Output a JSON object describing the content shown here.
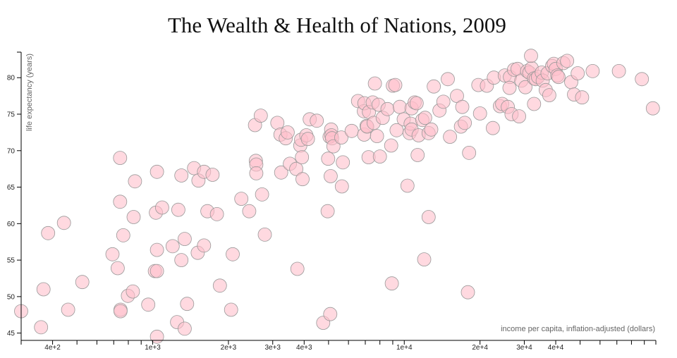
{
  "chart_data": {
    "type": "scatter",
    "title": "The Wealth & Health of Nations, 2009",
    "xlabel": "income per capita, inflation-adjusted (dollars)",
    "ylabel": "life expectancy (years)",
    "x_scale": "log",
    "xlim": [
      300,
      100000
    ],
    "ylim": [
      44,
      83.5
    ],
    "x_ticks": [
      {
        "value": 400,
        "label": "4e+2"
      },
      {
        "value": 1000,
        "label": "1e+3"
      },
      {
        "value": 2000,
        "label": "2e+3"
      },
      {
        "value": 3000,
        "label": "3e+3"
      },
      {
        "value": 4000,
        "label": "4e+3"
      },
      {
        "value": 10000,
        "label": "1e+4"
      },
      {
        "value": 20000,
        "label": "2e+4"
      },
      {
        "value": 30000,
        "label": "3e+4"
      },
      {
        "value": 40000,
        "label": "4e+4"
      }
    ],
    "y_ticks": [
      {
        "value": 45,
        "label": "45"
      },
      {
        "value": 50,
        "label": "50"
      },
      {
        "value": 55,
        "label": "55"
      },
      {
        "value": 60,
        "label": "60"
      },
      {
        "value": 65,
        "label": "65"
      },
      {
        "value": 70,
        "label": "70"
      },
      {
        "value": 75,
        "label": "75"
      },
      {
        "value": 80,
        "label": "80"
      }
    ],
    "grid": false,
    "points": [
      [
        300,
        48.0
      ],
      [
        368,
        51.0
      ],
      [
        360,
        45.8
      ],
      [
        384,
        58.7
      ],
      [
        444,
        60.1
      ],
      [
        461,
        48.2
      ],
      [
        525,
        52.0
      ],
      [
        692,
        55.8
      ],
      [
        726,
        53.9
      ],
      [
        745,
        48.2
      ],
      [
        745,
        48.0
      ],
      [
        742,
        63.0
      ],
      [
        742,
        69.0
      ],
      [
        764,
        58.4
      ],
      [
        797,
        50.1
      ],
      [
        834,
        50.7
      ],
      [
        840,
        60.9
      ],
      [
        850,
        65.8
      ],
      [
        960,
        48.9
      ],
      [
        1020,
        53.5
      ],
      [
        1030,
        61.5
      ],
      [
        1040,
        56.4
      ],
      [
        1040,
        53.5
      ],
      [
        1040,
        67.1
      ],
      [
        1040,
        44.5
      ],
      [
        1090,
        62.2
      ],
      [
        1200,
        56.9
      ],
      [
        1250,
        46.5
      ],
      [
        1265,
        61.9
      ],
      [
        1300,
        55.0
      ],
      [
        1300,
        66.6
      ],
      [
        1340,
        45.6
      ],
      [
        1340,
        57.9
      ],
      [
        1370,
        49.0
      ],
      [
        1460,
        67.6
      ],
      [
        1510,
        56.0
      ],
      [
        1520,
        65.9
      ],
      [
        1600,
        57.0
      ],
      [
        1600,
        67.1
      ],
      [
        1650,
        61.7
      ],
      [
        1730,
        66.7
      ],
      [
        1800,
        61.3
      ],
      [
        1850,
        51.5
      ],
      [
        2050,
        48.2
      ],
      [
        2080,
        55.8
      ],
      [
        2250,
        63.4
      ],
      [
        2420,
        61.7
      ],
      [
        2550,
        73.5
      ],
      [
        2570,
        68.6
      ],
      [
        2580,
        68.1
      ],
      [
        2580,
        66.9
      ],
      [
        2690,
        74.8
      ],
      [
        2720,
        64.0
      ],
      [
        2790,
        58.5
      ],
      [
        3130,
        73.8
      ],
      [
        3220,
        72.2
      ],
      [
        3240,
        67.0
      ],
      [
        3380,
        71.7
      ],
      [
        3440,
        72.5
      ],
      [
        3510,
        68.2
      ],
      [
        3720,
        67.5
      ],
      [
        3760,
        53.8
      ],
      [
        3860,
        70.7
      ],
      [
        3890,
        71.5
      ],
      [
        3920,
        69.1
      ],
      [
        3940,
        66.1
      ],
      [
        4080,
        72.1
      ],
      [
        4140,
        71.6
      ],
      [
        4210,
        74.3
      ],
      [
        4490,
        74.1
      ],
      [
        4760,
        46.4
      ],
      [
        4960,
        61.7
      ],
      [
        4980,
        68.9
      ],
      [
        5050,
        71.9
      ],
      [
        5080,
        47.6
      ],
      [
        5100,
        66.5
      ],
      [
        5120,
        72.9
      ],
      [
        5130,
        72.1
      ],
      [
        5160,
        71.7
      ],
      [
        5230,
        70.6
      ],
      [
        5620,
        71.8
      ],
      [
        5650,
        65.1
      ],
      [
        5700,
        68.4
      ],
      [
        6180,
        72.7
      ],
      [
        6550,
        76.8
      ],
      [
        6910,
        75.4
      ],
      [
        6930,
        72.2
      ],
      [
        6940,
        76.5
      ],
      [
        7080,
        73.4
      ],
      [
        7120,
        73.3
      ],
      [
        7210,
        69.1
      ],
      [
        7240,
        75.3
      ],
      [
        7490,
        76.6
      ],
      [
        7560,
        73.8
      ],
      [
        7640,
        79.2
      ],
      [
        7790,
        72.0
      ],
      [
        7910,
        76.3
      ],
      [
        8000,
        69.2
      ],
      [
        8210,
        74.5
      ],
      [
        8580,
        75.7
      ],
      [
        8870,
        70.7
      ],
      [
        8920,
        51.8
      ],
      [
        9010,
        78.9
      ],
      [
        9210,
        79.0
      ],
      [
        9320,
        72.8
      ],
      [
        9600,
        76.0
      ],
      [
        9950,
        74.3
      ],
      [
        10300,
        65.2
      ],
      [
        10500,
        72.4
      ],
      [
        10600,
        73.7
      ],
      [
        10700,
        72.9
      ],
      [
        10700,
        75.8
      ],
      [
        11000,
        76.6
      ],
      [
        11200,
        76.5
      ],
      [
        11300,
        69.4
      ],
      [
        11400,
        72.1
      ],
      [
        11800,
        74.2
      ],
      [
        12100,
        74.5
      ],
      [
        12000,
        55.1
      ],
      [
        12500,
        60.9
      ],
      [
        12500,
        72.4
      ],
      [
        12800,
        72.9
      ],
      [
        13100,
        78.8
      ],
      [
        13800,
        75.5
      ],
      [
        14300,
        76.7
      ],
      [
        14900,
        79.8
      ],
      [
        15200,
        71.9
      ],
      [
        16200,
        77.5
      ],
      [
        16800,
        73.3
      ],
      [
        17000,
        76.0
      ],
      [
        17400,
        73.8
      ],
      [
        18100,
        69.7
      ],
      [
        17900,
        50.6
      ],
      [
        19700,
        79.0
      ],
      [
        20000,
        75.1
      ],
      [
        21300,
        78.9
      ],
      [
        22700,
        80.0
      ],
      [
        22500,
        73.1
      ],
      [
        24000,
        76.1
      ],
      [
        24500,
        76.4
      ],
      [
        25100,
        80.3
      ],
      [
        25800,
        76.0
      ],
      [
        26300,
        80.1
      ],
      [
        26200,
        78.6
      ],
      [
        26700,
        75.0
      ],
      [
        27300,
        81.1
      ],
      [
        28200,
        81.2
      ],
      [
        28600,
        74.7
      ],
      [
        29200,
        79.6
      ],
      [
        30300,
        78.7
      ],
      [
        30800,
        80.9
      ],
      [
        31400,
        80.7
      ],
      [
        32100,
        81.3
      ],
      [
        31900,
        83.0
      ],
      [
        32800,
        79.9
      ],
      [
        32800,
        76.4
      ],
      [
        33300,
        79.8
      ],
      [
        34000,
        80.1
      ],
      [
        35200,
        80.7
      ],
      [
        35500,
        79.6
      ],
      [
        36500,
        78.3
      ],
      [
        37100,
        80.6
      ],
      [
        37700,
        77.6
      ],
      [
        38700,
        81.6
      ],
      [
        39300,
        81.9
      ],
      [
        40000,
        81.2
      ],
      [
        40600,
        80.3
      ],
      [
        41000,
        80.1
      ],
      [
        42900,
        82.0
      ],
      [
        44400,
        82.3
      ],
      [
        46100,
        79.4
      ],
      [
        47300,
        77.7
      ],
      [
        48900,
        80.6
      ],
      [
        50900,
        77.3
      ],
      [
        56100,
        80.9
      ],
      [
        71300,
        80.9
      ],
      [
        88000,
        79.8
      ],
      [
        97300,
        75.8
      ]
    ]
  }
}
